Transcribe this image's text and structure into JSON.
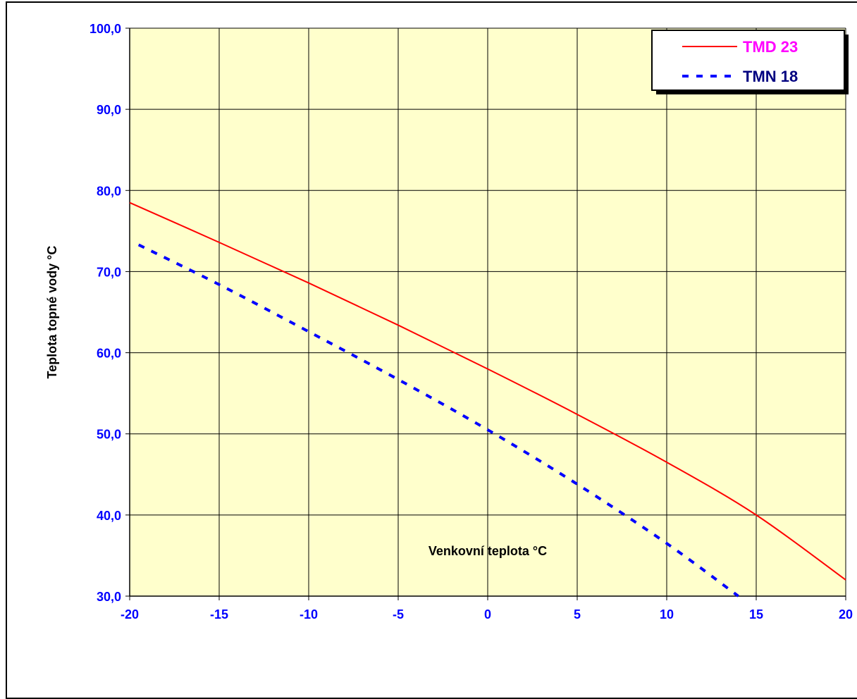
{
  "chart_data": {
    "type": "line",
    "xlabel": "Venkovní teplota °C",
    "ylabel": "Teplota topné vody °C",
    "xlim": [
      -20,
      20
    ],
    "ylim": [
      30,
      100
    ],
    "x_ticks": [
      "-20",
      "-15",
      "-10",
      "-5",
      "0",
      "5",
      "10",
      "15",
      "20"
    ],
    "y_ticks": [
      "30,0",
      "40,0",
      "50,0",
      "60,0",
      "70,0",
      "80,0",
      "90,0",
      "100,0"
    ],
    "grid": true,
    "legend_position": "top-right",
    "plot_background": "#ffffcc",
    "series": [
      {
        "name": "TMD 23",
        "style": "solid",
        "color": "#ff0000",
        "label_color": "#ff00ff",
        "x": [
          -20,
          -15,
          -10,
          -5,
          0,
          5,
          10,
          15,
          20
        ],
        "y": [
          78.5,
          73.6,
          68.6,
          63.4,
          58.0,
          52.4,
          46.5,
          40.0,
          32.0
        ]
      },
      {
        "name": "TMN 18",
        "style": "dashed",
        "color": "#0000ff",
        "label_color": "#000080",
        "x": [
          -19.5,
          -15,
          -10,
          -5,
          0,
          5,
          10,
          14
        ],
        "y": [
          73.3,
          68.4,
          62.6,
          56.7,
          50.5,
          43.8,
          36.5,
          30.0
        ]
      }
    ]
  }
}
